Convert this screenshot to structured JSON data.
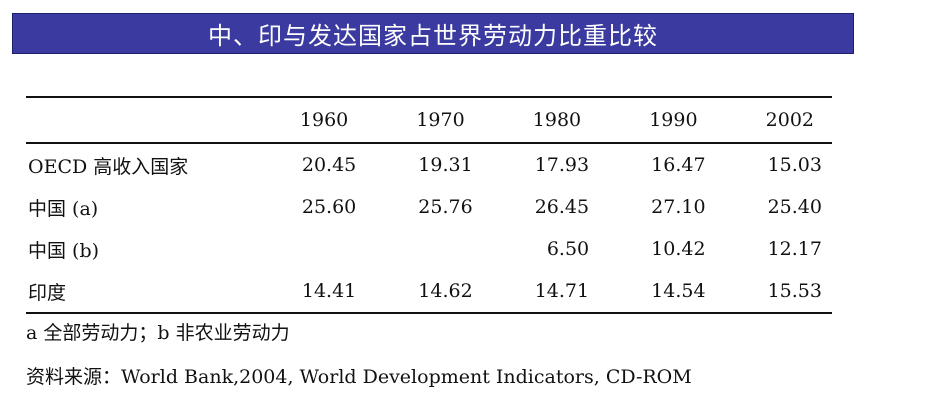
{
  "title": "中、印与发达国家占世界劳动力比重比较",
  "table": {
    "columns": [
      "1960",
      "1970",
      "1980",
      "1990",
      "2002"
    ],
    "rows": [
      {
        "label": "OECD 高收入国家",
        "values": [
          "20.45",
          "19.31",
          "17.93",
          "16.47",
          "15.03"
        ]
      },
      {
        "label": "中国 (a)",
        "values": [
          "25.60",
          "25.76",
          "26.45",
          "27.10",
          "25.40"
        ]
      },
      {
        "label": "中国 (b)",
        "values": [
          "",
          "",
          "6.50",
          "10.42",
          "12.17"
        ]
      },
      {
        "label": "印度",
        "values": [
          "14.41",
          "14.62",
          "14.71",
          "14.54",
          "15.53"
        ]
      }
    ]
  },
  "footnote": "a  全部劳动力；b  非农业劳动力",
  "source": "资料来源：World Bank,2004, World Development Indicators, CD-ROM",
  "colors": {
    "title_background": "#3a3aa0",
    "title_text": "#ffffff"
  }
}
